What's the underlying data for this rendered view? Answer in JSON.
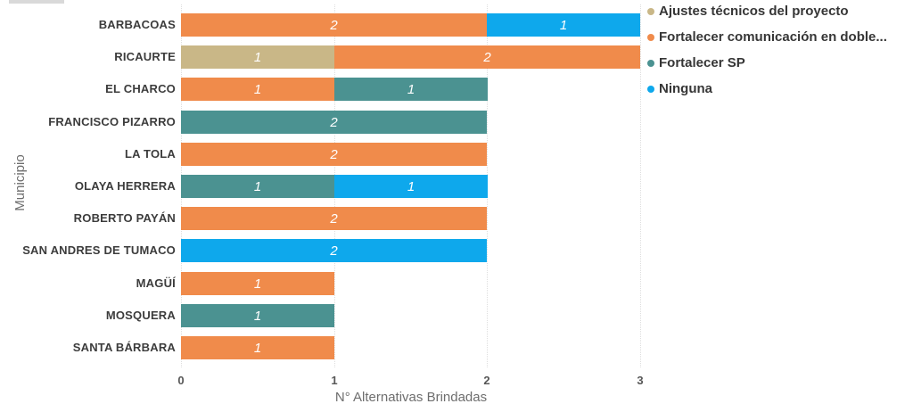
{
  "chart_data": {
    "type": "bar",
    "orientation": "horizontal",
    "stacked": true,
    "title": "",
    "xlabel": "N° Alternativas Brindadas",
    "ylabel": "Municipio",
    "xlim": [
      0,
      3
    ],
    "xticks": [
      0,
      1,
      2,
      3
    ],
    "grid": "vertical-dotted",
    "legend_position": "top-right",
    "value_label_color": "#FFFFFF",
    "categories": [
      "BARBACOAS",
      "RICAURTE",
      "EL CHARCO",
      "FRANCISCO PIZARRO",
      "LA TOLA",
      "OLAYA HERRERA",
      "ROBERTO PAYÁN",
      "SAN ANDRES DE TUMACO",
      "MAGÜÍ",
      "MOSQUERA",
      "SANTA BÁRBARA"
    ],
    "series": [
      {
        "name": "Ajustes técnicos del proyecto",
        "color": "#C9B787",
        "values": [
          0,
          1,
          0,
          0,
          0,
          0,
          0,
          0,
          0,
          0,
          0
        ]
      },
      {
        "name": "Fortalecer comunicación en doble...",
        "color": "#F08B4B",
        "values": [
          2,
          2,
          1,
          0,
          2,
          0,
          2,
          0,
          1,
          0,
          1
        ]
      },
      {
        "name": "Fortalecer SP",
        "color": "#4B9291",
        "values": [
          0,
          0,
          1,
          2,
          0,
          1,
          0,
          0,
          0,
          1,
          0
        ]
      },
      {
        "name": "Ninguna",
        "color": "#0EA8EC",
        "values": [
          1,
          0,
          0,
          0,
          0,
          1,
          0,
          2,
          0,
          0,
          0
        ]
      }
    ]
  }
}
